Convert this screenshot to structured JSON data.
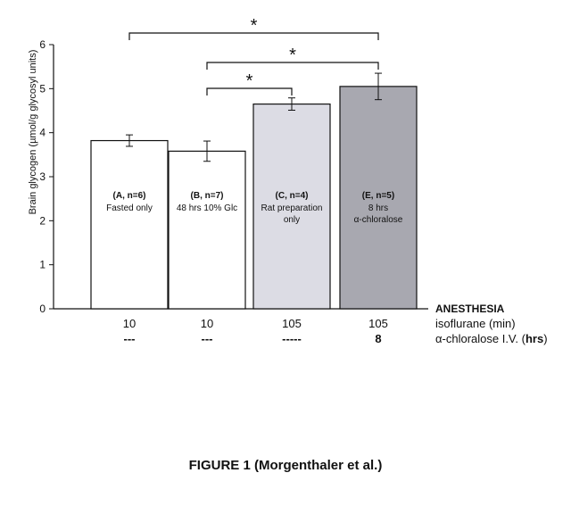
{
  "chart_data": {
    "type": "bar",
    "ylabel": "Brain glycogen (µmol/g glycosyl units)",
    "ylim": [
      0,
      6
    ],
    "yticks": [
      "0",
      "1",
      "2",
      "3",
      "4",
      "5",
      "6"
    ],
    "grid": false,
    "bars": [
      {
        "label_bold": "(A, n=6)",
        "label_lines": [
          "Fasted only"
        ],
        "value": 3.82,
        "error": 0.13,
        "color": "#ffffff"
      },
      {
        "label_bold": "(B, n=7)",
        "label_lines": [
          "48 hrs 10% Glc"
        ],
        "value": 3.58,
        "error": 0.23,
        "color": "#ffffff"
      },
      {
        "label_bold": "(C, n=4)",
        "label_lines": [
          "Rat preparation",
          "only"
        ],
        "value": 4.65,
        "error": 0.14,
        "color": "#dcdce4"
      },
      {
        "label_bold": "(E, n=5)",
        "label_lines": [
          "8 hrs",
          "α-chloralose"
        ],
        "value": 5.05,
        "error": 0.3,
        "color": "#a8a8b0"
      }
    ],
    "significance": [
      {
        "from": 0,
        "to": 3,
        "label": "*"
      },
      {
        "from": 1,
        "to": 3,
        "label": "*"
      },
      {
        "from": 1,
        "to": 2,
        "label": "*"
      }
    ]
  },
  "anesthesia": {
    "title": "ANESTHESIA",
    "isoflurane_label": "isoflurane (min)",
    "isoflurane_values": [
      "10",
      "10",
      "105",
      "105"
    ],
    "chloralose_label_prefix": "α-chloralose I.V. (",
    "chloralose_label_unit": "hrs",
    "chloralose_label_suffix": ")",
    "chloralose_values": [
      "---",
      "---",
      "-----",
      "8"
    ]
  },
  "caption": "FIGURE 1 (Morgenthaler et al.)"
}
